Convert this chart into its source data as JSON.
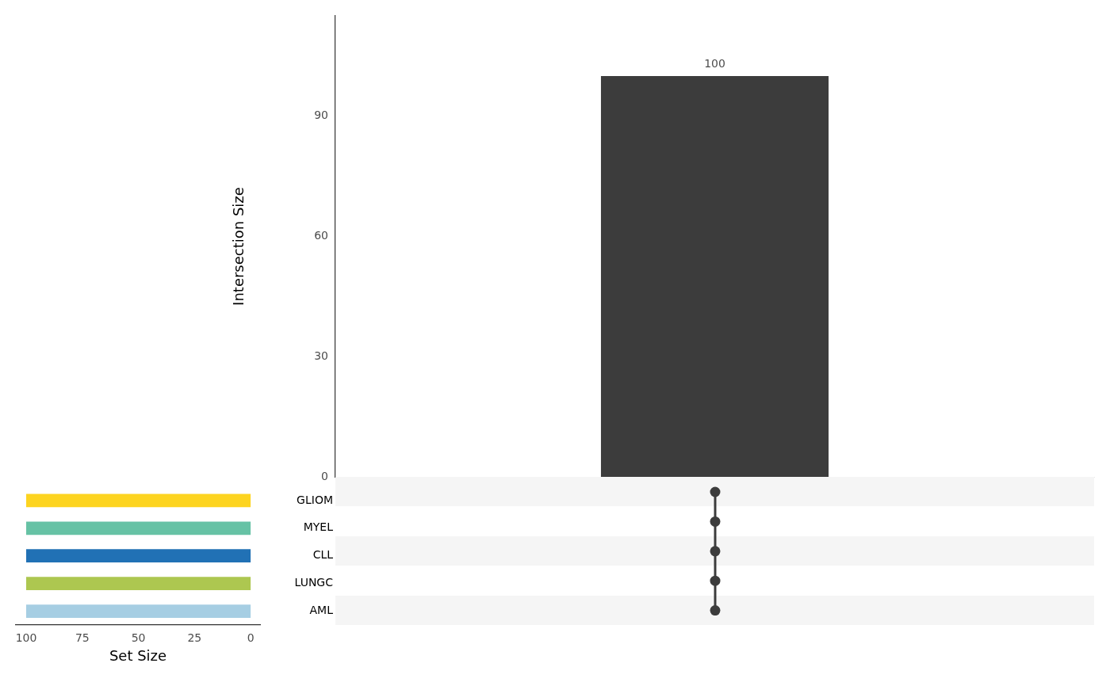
{
  "chart_data": [
    {
      "type": "bar",
      "ylabel": "Intersection Size",
      "categories": [
        null
      ],
      "values": [
        100
      ],
      "color": "#3c3c3c",
      "ylim": [
        0,
        115
      ],
      "yticks": [
        0,
        30,
        60,
        90
      ],
      "data_labels": true,
      "grid": false,
      "tick_labels": "y"
    },
    {
      "type": "bar",
      "orientation": "horizontal",
      "xlabel": "Set Size",
      "categories": [
        "GLIOM",
        "MYEL",
        "CLL",
        "LUNGC",
        "AML"
      ],
      "values": [
        100,
        100,
        100,
        100,
        100
      ],
      "colors": [
        "#fdd420",
        "#66c2a5",
        "#2171b5",
        "#adc750",
        "#a6cee3"
      ],
      "xlim": [
        104.6,
        -4.2
      ],
      "xticks": [
        100,
        75,
        50,
        25,
        0
      ],
      "grid": false
    }
  ]
}
